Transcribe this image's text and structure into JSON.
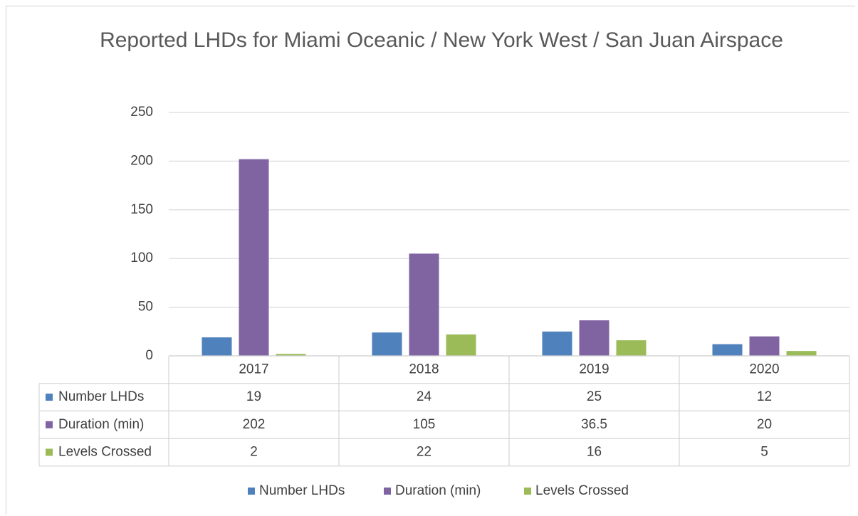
{
  "chart_data": {
    "type": "bar",
    "title": "Reported LHDs for Miami Oceanic / New York West / San Juan Airspace",
    "categories": [
      "2017",
      "2018",
      "2019",
      "2020"
    ],
    "series": [
      {
        "name": "Number LHDs",
        "color": "#4f81bd",
        "values": [
          19,
          24,
          25,
          12
        ]
      },
      {
        "name": "Duration (min)",
        "color": "#8064a2",
        "values": [
          202,
          105,
          36.5,
          20
        ]
      },
      {
        "name": "Levels Crossed",
        "color": "#9bbb59",
        "values": [
          2,
          22,
          16,
          5
        ]
      }
    ],
    "ylim": [
      0,
      250
    ],
    "yticks": [
      0,
      50,
      100,
      150,
      200,
      250
    ],
    "grid": true,
    "legend": "bottom",
    "data_table": true
  }
}
